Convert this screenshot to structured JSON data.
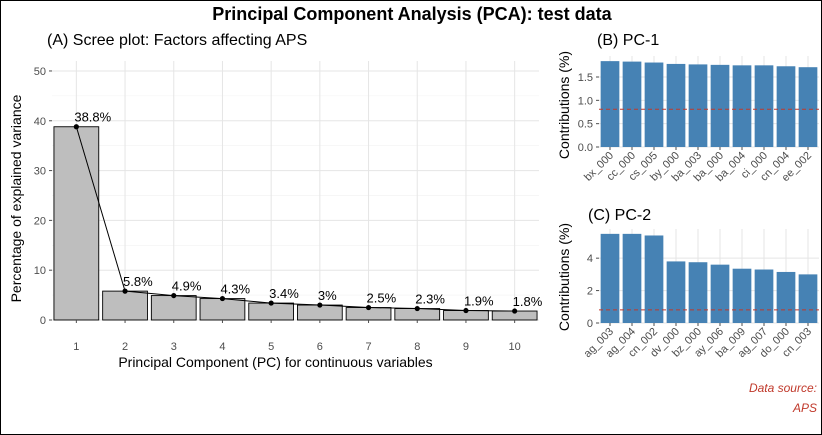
{
  "header": {
    "title": "Principal Component Analysis (PCA): test data"
  },
  "source": {
    "line1": "Data source:",
    "line2": "APS"
  },
  "chart_data": [
    {
      "type": "bar",
      "title": "(A) Scree plot: Factors affecting APS",
      "xlabel": "Principal Component (PC) for continuous variables",
      "ylabel": "Percentage of explained variance",
      "categories": [
        "1",
        "2",
        "3",
        "4",
        "5",
        "6",
        "7",
        "8",
        "9",
        "10"
      ],
      "values": [
        38.8,
        5.8,
        4.9,
        4.3,
        3.4,
        3.0,
        2.5,
        2.3,
        1.9,
        1.8
      ],
      "data_labels": [
        "38.8%",
        "5.8%",
        "4.9%",
        "4.3%",
        "3.4%",
        "3%",
        "2.5%",
        "2.3%",
        "1.9%",
        "1.8%"
      ],
      "yticks": [
        0,
        10,
        20,
        30,
        40,
        50
      ],
      "ylim": [
        0,
        52
      ],
      "grid": true,
      "line_overlay": true,
      "bar_color": "#bebebe"
    },
    {
      "type": "bar",
      "title": "(B) PC-1",
      "ylabel": "Contributions (%)",
      "categories": [
        "bx_000",
        "cc_000",
        "cs_005",
        "by_000",
        "ba_003",
        "ba_000",
        "ba_004",
        "ci_000",
        "cn_004",
        "ee_002"
      ],
      "values": [
        1.84,
        1.83,
        1.81,
        1.78,
        1.77,
        1.76,
        1.75,
        1.75,
        1.73,
        1.71
      ],
      "yticks": [
        0.0,
        0.5,
        1.0,
        1.5
      ],
      "ytick_labels": [
        "0.0",
        "0.5",
        "1.0",
        "1.5"
      ],
      "ylim": [
        0,
        1.95
      ],
      "reference_line": 0.81,
      "bar_color": "#4682b4",
      "reference_color": "#c0392b"
    },
    {
      "type": "bar",
      "title": "(C) PC-2",
      "ylabel": "Contributions (%)",
      "categories": [
        "ag_003",
        "ag_004",
        "cn_002",
        "dv_000",
        "bz_000",
        "ay_006",
        "ba_009",
        "ag_007",
        "do_000",
        "cn_003"
      ],
      "values": [
        5.5,
        5.5,
        5.4,
        3.8,
        3.75,
        3.6,
        3.35,
        3.3,
        3.15,
        3.0
      ],
      "yticks": [
        0,
        2,
        4
      ],
      "ytick_labels": [
        "0",
        "2",
        "4"
      ],
      "ylim": [
        0,
        5.8
      ],
      "reference_line": 0.81,
      "bar_color": "#4682b4",
      "reference_color": "#c0392b"
    }
  ]
}
